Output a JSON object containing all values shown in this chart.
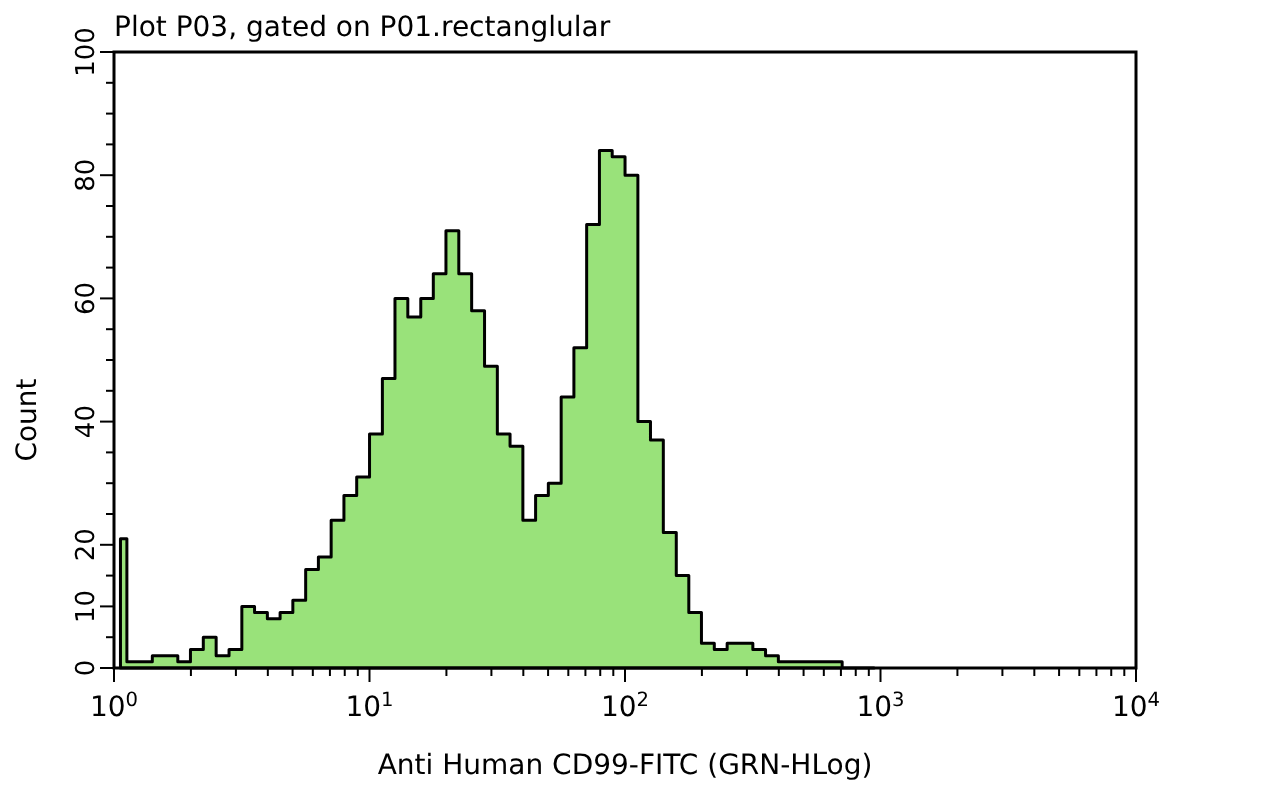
{
  "chart_data": {
    "type": "area",
    "title": "Plot P03, gated on P01.rectanglular",
    "xlabel": "Anti Human CD99-FITC (GRN-HLog)",
    "ylabel": "Count",
    "log": "x",
    "color": "#99e27a",
    "x": [
      1.06,
      1.19,
      1.33,
      1.5,
      1.68,
      1.88,
      2.11,
      2.37,
      2.66,
      2.99,
      3.35,
      3.76,
      4.22,
      4.73,
      5.31,
      5.96,
      6.68,
      7.5,
      8.41,
      9.44,
      10.6,
      11.9,
      13.3,
      15,
      16.8,
      18.8,
      21.1,
      23.7,
      26.6,
      29.9,
      33.5,
      37.6,
      42.2,
      47.3,
      53.1,
      59.6,
      66.8,
      75,
      84.1,
      94.4,
      106,
      119,
      133,
      150,
      168,
      188,
      211,
      237,
      266,
      299,
      335,
      376,
      422,
      473,
      531,
      596,
      668,
      750,
      841,
      944
    ],
    "values": [
      21,
      1,
      1,
      2,
      2,
      1,
      3,
      5,
      2,
      3,
      10,
      9,
      8,
      9,
      11,
      16,
      18,
      24,
      28,
      31,
      38,
      47,
      60,
      57,
      60,
      64,
      71,
      64,
      58,
      49,
      38,
      36,
      24,
      28,
      30,
      44,
      52,
      72,
      84,
      83,
      80,
      40,
      37,
      22,
      15,
      9,
      4,
      3,
      4,
      4,
      3,
      2,
      1,
      1,
      1,
      1,
      1,
      0,
      0,
      0
    ],
    "xlim": [
      1,
      10000
    ],
    "xticks": [
      {
        "value": 1,
        "label": "10$^{0}$"
      },
      {
        "value": 2,
        "label": null
      },
      {
        "value": 3,
        "label": null
      },
      {
        "value": 4,
        "label": null
      },
      {
        "value": 5,
        "label": null
      },
      {
        "value": 6,
        "label": null
      },
      {
        "value": 7,
        "label": null
      },
      {
        "value": 8,
        "label": null
      },
      {
        "value": 9,
        "label": null
      },
      {
        "value": 10,
        "label": "10$^{1}$"
      },
      {
        "value": 20,
        "label": null
      },
      {
        "value": 30,
        "label": null
      },
      {
        "value": 40,
        "label": null
      },
      {
        "value": 50,
        "label": null
      },
      {
        "value": 60,
        "label": null
      },
      {
        "value": 70,
        "label": null
      },
      {
        "value": 80,
        "label": null
      },
      {
        "value": 90,
        "label": null
      },
      {
        "value": 100,
        "label": "10$^{2}$"
      },
      {
        "value": 200,
        "label": null
      },
      {
        "value": 300,
        "label": null
      },
      {
        "value": 400,
        "label": null
      },
      {
        "value": 500,
        "label": null
      },
      {
        "value": 600,
        "label": null
      },
      {
        "value": 700,
        "label": null
      },
      {
        "value": 800,
        "label": null
      },
      {
        "value": 900,
        "label": null
      },
      {
        "value": 1000,
        "label": "10$^{3}$"
      },
      {
        "value": 2000,
        "label": null
      },
      {
        "value": 3000,
        "label": null
      },
      {
        "value": 4000,
        "label": null
      },
      {
        "value": 5000,
        "label": null
      },
      {
        "value": 6000,
        "label": null
      },
      {
        "value": 7000,
        "label": null
      },
      {
        "value": 8000,
        "label": null
      },
      {
        "value": 9000,
        "label": null
      },
      {
        "value": 10000,
        "label": "10$^{4}$"
      }
    ],
    "ylim": [
      0,
      100
    ],
    "yticks": [
      0,
      {
        "value": 5,
        "label": null
      },
      10,
      {
        "value": 15,
        "label": null
      },
      20,
      {
        "value": 25,
        "label": null
      },
      {
        "value": 30,
        "label": null
      },
      {
        "value": 35,
        "label": null
      },
      40,
      {
        "value": 45,
        "label": null
      },
      {
        "value": 50,
        "label": null
      },
      {
        "value": 55,
        "label": null
      },
      60,
      {
        "value": 65,
        "label": null
      },
      {
        "value": 70,
        "label": null
      },
      {
        "value": 75,
        "label": null
      },
      80,
      {
        "value": 85,
        "label": null
      },
      {
        "value": 90,
        "label": null
      },
      {
        "value": 95,
        "label": null
      },
      100
    ],
    "grid": false
  }
}
